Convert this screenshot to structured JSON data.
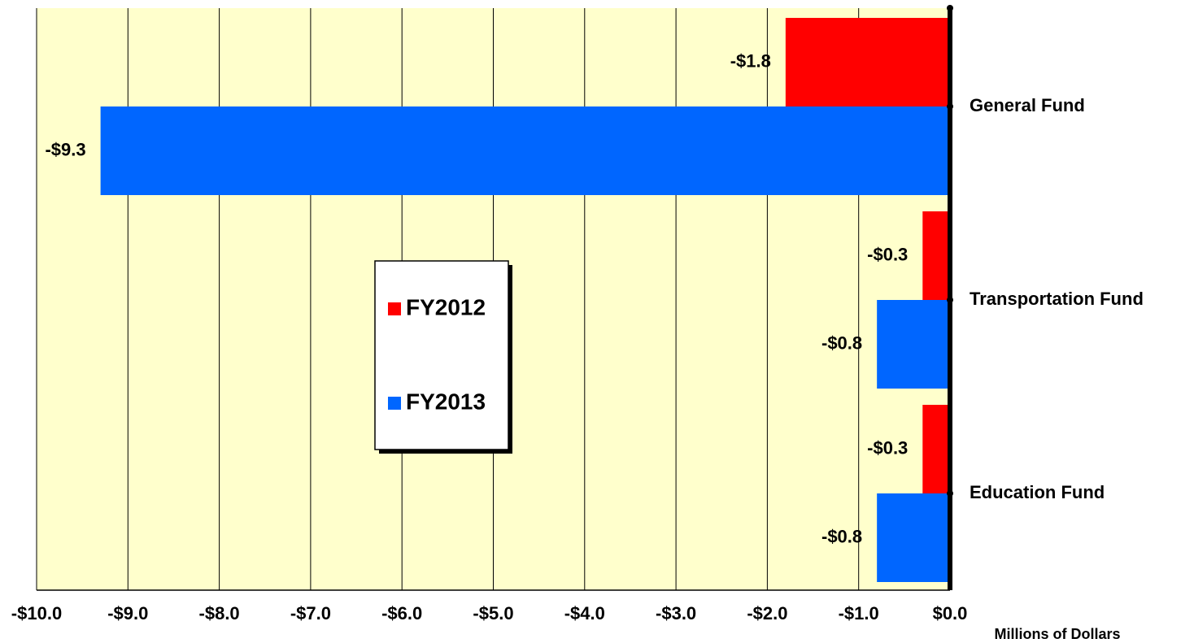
{
  "chart_data": {
    "type": "hbar",
    "categories": [
      "General Fund",
      "Transportation Fund",
      "Education Fund"
    ],
    "series": [
      {
        "name": "FY2012",
        "color": "#ff0000",
        "values": [
          -1.8,
          -0.3,
          -0.3
        ],
        "value_labels": [
          "-$1.8",
          "-$0.3",
          "-$0.3"
        ]
      },
      {
        "name": "FY2013",
        "color": "#0066ff",
        "values": [
          -9.3,
          -0.8,
          -0.8
        ],
        "value_labels": [
          "-$9.3",
          "-$0.8",
          "-$0.8"
        ]
      }
    ],
    "xlabel": "Millions of Dollars",
    "xlim": [
      -10,
      0
    ],
    "xticks": [
      {
        "value": -10,
        "label": "-$10.0"
      },
      {
        "value": -9,
        "label": "-$9.0"
      },
      {
        "value": -8,
        "label": "-$8.0"
      },
      {
        "value": -7,
        "label": "-$7.0"
      },
      {
        "value": -6,
        "label": "-$6.0"
      },
      {
        "value": -5,
        "label": "-$5.0"
      },
      {
        "value": -4,
        "label": "-$4.0"
      },
      {
        "value": -3,
        "label": "-$3.0"
      },
      {
        "value": -2,
        "label": "-$2.0"
      },
      {
        "value": -1,
        "label": "-$1.0"
      },
      {
        "value": 0,
        "label": "$0.0"
      }
    ],
    "grid": true,
    "background": "#ffffcc"
  }
}
